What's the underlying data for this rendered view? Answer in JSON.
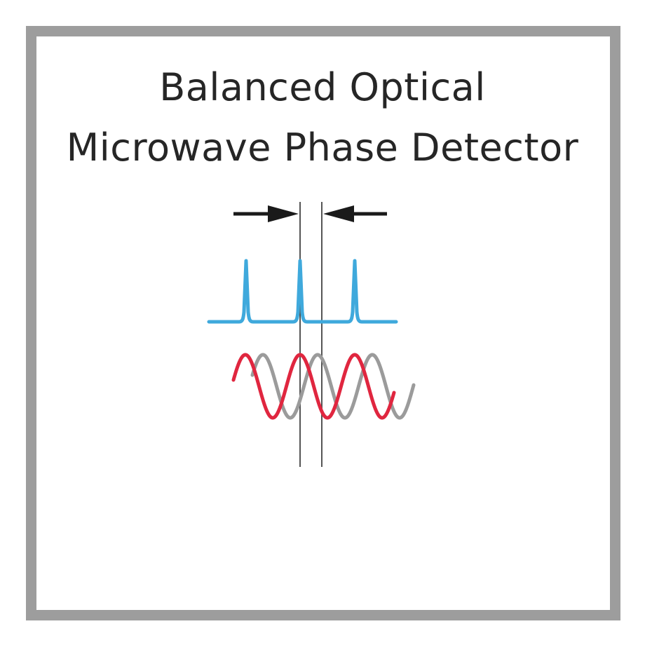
{
  "title": {
    "line1": "Balanced Optical",
    "line2": "Microwave Phase Detector"
  },
  "colors": {
    "frame": "#9d9d9d",
    "title_text": "#262626",
    "pulse_train": "#3fa9dc",
    "reference_wave": "#9b9b9b",
    "signal_wave": "#e0263f",
    "marker_lines": "#555555",
    "arrows": "#1a1a1a"
  },
  "icons": {
    "left_arrow": "arrow-right-icon",
    "right_arrow": "arrow-left-icon"
  }
}
